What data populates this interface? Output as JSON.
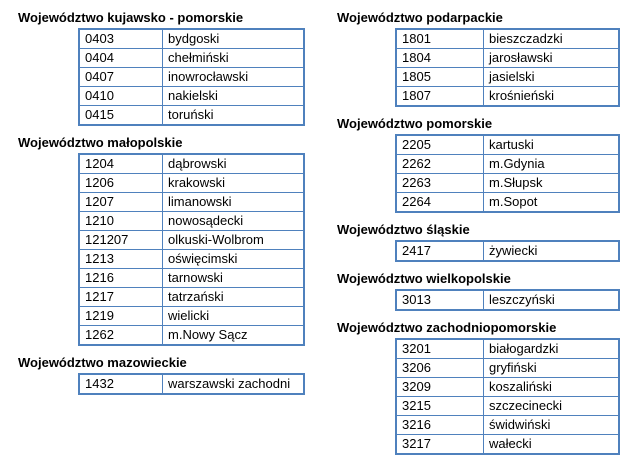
{
  "page": {
    "background_color": "#ffffff",
    "border_color": "#4F81BD",
    "text_color": "#000000"
  },
  "columns": [
    {
      "name": "left",
      "sections": [
        {
          "title": "Województwo kujawsko - pomorskie",
          "rows": [
            [
              "0403",
              "bydgoski"
            ],
            [
              "0404",
              "chełmiński"
            ],
            [
              "0407",
              "inowrocławski"
            ],
            [
              "0410",
              "nakielski"
            ],
            [
              "0415",
              "toruński"
            ]
          ]
        },
        {
          "title": "Województwo małopolskie",
          "rows": [
            [
              "1204",
              "dąbrowski"
            ],
            [
              "1206",
              "krakowski"
            ],
            [
              "1207",
              "limanowski"
            ],
            [
              "1210",
              "nowosądecki"
            ],
            [
              "121207",
              "olkuski-Wolbrom"
            ],
            [
              "1213",
              "oświęcimski"
            ],
            [
              "1216",
              "tarnowski"
            ],
            [
              "1217",
              "tatrzański"
            ],
            [
              "1219",
              "wielicki"
            ],
            [
              "1262",
              "m.Nowy Sącz"
            ]
          ]
        },
        {
          "title": "Województwo mazowieckie",
          "rows": [
            [
              "1432",
              "warszawski zachodni"
            ]
          ]
        }
      ]
    },
    {
      "name": "right",
      "sections": [
        {
          "title": "Województwo podarpackie",
          "rows": [
            [
              "1801",
              "bieszczadzki"
            ],
            [
              "1804",
              "jarosławski"
            ],
            [
              "1805",
              "jasielski"
            ],
            [
              "1807",
              "krośnieński"
            ]
          ]
        },
        {
          "title": "Województwo pomorskie",
          "rows": [
            [
              "2205",
              "kartuski"
            ],
            [
              "2262",
              "m.Gdynia"
            ],
            [
              "2263",
              "m.Słupsk"
            ],
            [
              "2264",
              "m.Sopot"
            ]
          ]
        },
        {
          "title": "Województwo śląskie",
          "rows": [
            [
              "2417",
              "żywiecki"
            ]
          ]
        },
        {
          "title": "Województwo wielkopolskie",
          "rows": [
            [
              "3013",
              "leszczyński"
            ]
          ]
        },
        {
          "title": "Województwo zachodniopomorskie",
          "rows": [
            [
              "3201",
              "białogardzki"
            ],
            [
              "3206",
              "gryfiński"
            ],
            [
              "3209",
              "koszaliński"
            ],
            [
              "3215",
              "szczecinecki"
            ],
            [
              "3216",
              "świdwiński"
            ],
            [
              "3217",
              "wałecki"
            ]
          ]
        }
      ]
    }
  ]
}
